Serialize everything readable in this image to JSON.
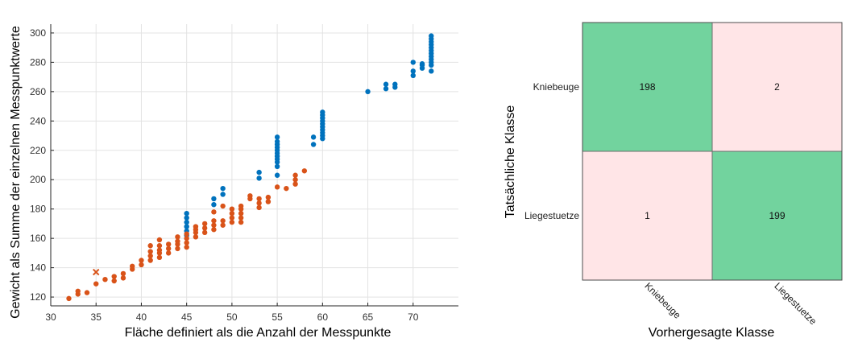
{
  "chart_data": [
    {
      "type": "scatter",
      "title": "",
      "xlabel": "Fläche definiert als die Anzahl der Messpunkte",
      "ylabel": "Gewicht als Summe der einzelnen Messpunktwerte",
      "xlim": [
        30,
        75
      ],
      "ylim": [
        114,
        306
      ],
      "xticks": [
        30,
        35,
        40,
        45,
        50,
        55,
        60,
        65,
        70
      ],
      "yticks": [
        120,
        140,
        160,
        180,
        200,
        220,
        240,
        260,
        280,
        300
      ],
      "grid": true,
      "series": [
        {
          "color": "#0072BD",
          "marker": "dot",
          "points": [
            [
              45,
              162
            ],
            [
              45,
              165
            ],
            [
              45,
              168
            ],
            [
              45,
              171
            ],
            [
              45,
              174
            ],
            [
              45,
              177
            ],
            [
              48,
              183
            ],
            [
              48,
              187
            ],
            [
              49,
              190
            ],
            [
              49,
              194
            ],
            [
              53,
              201
            ],
            [
              53,
              205
            ],
            [
              55,
              203
            ],
            [
              55,
              209
            ],
            [
              55,
              212
            ],
            [
              55,
              214
            ],
            [
              55,
              216
            ],
            [
              55,
              218
            ],
            [
              55,
              220
            ],
            [
              55,
              222
            ],
            [
              55,
              224
            ],
            [
              55,
              226
            ],
            [
              55,
              229
            ],
            [
              59,
              224
            ],
            [
              59,
              229
            ],
            [
              60,
              228
            ],
            [
              60,
              230
            ],
            [
              60,
              232
            ],
            [
              60,
              234
            ],
            [
              60,
              236
            ],
            [
              60,
              238
            ],
            [
              60,
              240
            ],
            [
              60,
              242
            ],
            [
              60,
              244
            ],
            [
              60,
              246
            ],
            [
              65,
              260
            ],
            [
              67,
              262
            ],
            [
              67,
              265
            ],
            [
              68,
              263
            ],
            [
              68,
              265
            ],
            [
              70,
              271
            ],
            [
              70,
              274
            ],
            [
              70,
              280
            ],
            [
              71,
              276
            ],
            [
              71,
              278
            ],
            [
              71,
              279
            ],
            [
              72,
              274
            ],
            [
              72,
              278
            ],
            [
              72,
              280
            ],
            [
              72,
              282
            ],
            [
              72,
              284
            ],
            [
              72,
              286
            ],
            [
              72,
              288
            ],
            [
              72,
              290
            ],
            [
              72,
              292
            ],
            [
              72,
              294
            ],
            [
              72,
              296
            ],
            [
              72,
              298
            ]
          ]
        },
        {
          "color": "#D95319",
          "marker": "dot",
          "points": [
            [
              32,
              119
            ],
            [
              33,
              122
            ],
            [
              33,
              124
            ],
            [
              34,
              123
            ],
            [
              35,
              129
            ],
            [
              36,
              132
            ],
            [
              37,
              131
            ],
            [
              37,
              134
            ],
            [
              38,
              133
            ],
            [
              38,
              136
            ],
            [
              39,
              139
            ],
            [
              39,
              141
            ],
            [
              40,
              142
            ],
            [
              40,
              145
            ],
            [
              41,
              145
            ],
            [
              41,
              148
            ],
            [
              41,
              151
            ],
            [
              41,
              155
            ],
            [
              42,
              147
            ],
            [
              42,
              150
            ],
            [
              42,
              152
            ],
            [
              42,
              155
            ],
            [
              42,
              159
            ],
            [
              43,
              150
            ],
            [
              43,
              153
            ],
            [
              43,
              156
            ],
            [
              44,
              153
            ],
            [
              44,
              156
            ],
            [
              44,
              158
            ],
            [
              44,
              161
            ],
            [
              45,
              154
            ],
            [
              45,
              157
            ],
            [
              45,
              160
            ],
            [
              45,
              163
            ],
            [
              46,
              161
            ],
            [
              46,
              164
            ],
            [
              46,
              166
            ],
            [
              46,
              168
            ],
            [
              47,
              164
            ],
            [
              47,
              167
            ],
            [
              47,
              170
            ],
            [
              48,
              166
            ],
            [
              48,
              169
            ],
            [
              48,
              172
            ],
            [
              48,
              178
            ],
            [
              49,
              169
            ],
            [
              49,
              172
            ],
            [
              49,
              182
            ],
            [
              50,
              171
            ],
            [
              50,
              174
            ],
            [
              50,
              177
            ],
            [
              50,
              180
            ],
            [
              51,
              171
            ],
            [
              51,
              174
            ],
            [
              51,
              177
            ],
            [
              51,
              180
            ],
            [
              51,
              182
            ],
            [
              52,
              187
            ],
            [
              52,
              189
            ],
            [
              53,
              181
            ],
            [
              53,
              184
            ],
            [
              53,
              187
            ],
            [
              54,
              185
            ],
            [
              54,
              188
            ],
            [
              55,
              195
            ],
            [
              56,
              194
            ],
            [
              57,
              197
            ],
            [
              57,
              200
            ],
            [
              57,
              203
            ],
            [
              58,
              206
            ]
          ]
        },
        {
          "color": "#D95319",
          "marker": "x",
          "points": [
            [
              35,
              137
            ]
          ]
        }
      ]
    },
    {
      "type": "heatmap",
      "title": "",
      "xlabel": "Vorhergesagte Klasse",
      "ylabel": "Tatsächliche Klasse",
      "row_labels": [
        "Kniebeuge",
        "Liegestuetze"
      ],
      "col_labels": [
        "Kniebeuge",
        "Liegestuetze"
      ],
      "values": [
        [
          "198",
          "2"
        ],
        [
          "1",
          "199"
        ]
      ],
      "cell_colors": [
        [
          "#72D39E",
          "#FFE5E7"
        ],
        [
          "#FFE5E7",
          "#72D39E"
        ]
      ]
    }
  ]
}
